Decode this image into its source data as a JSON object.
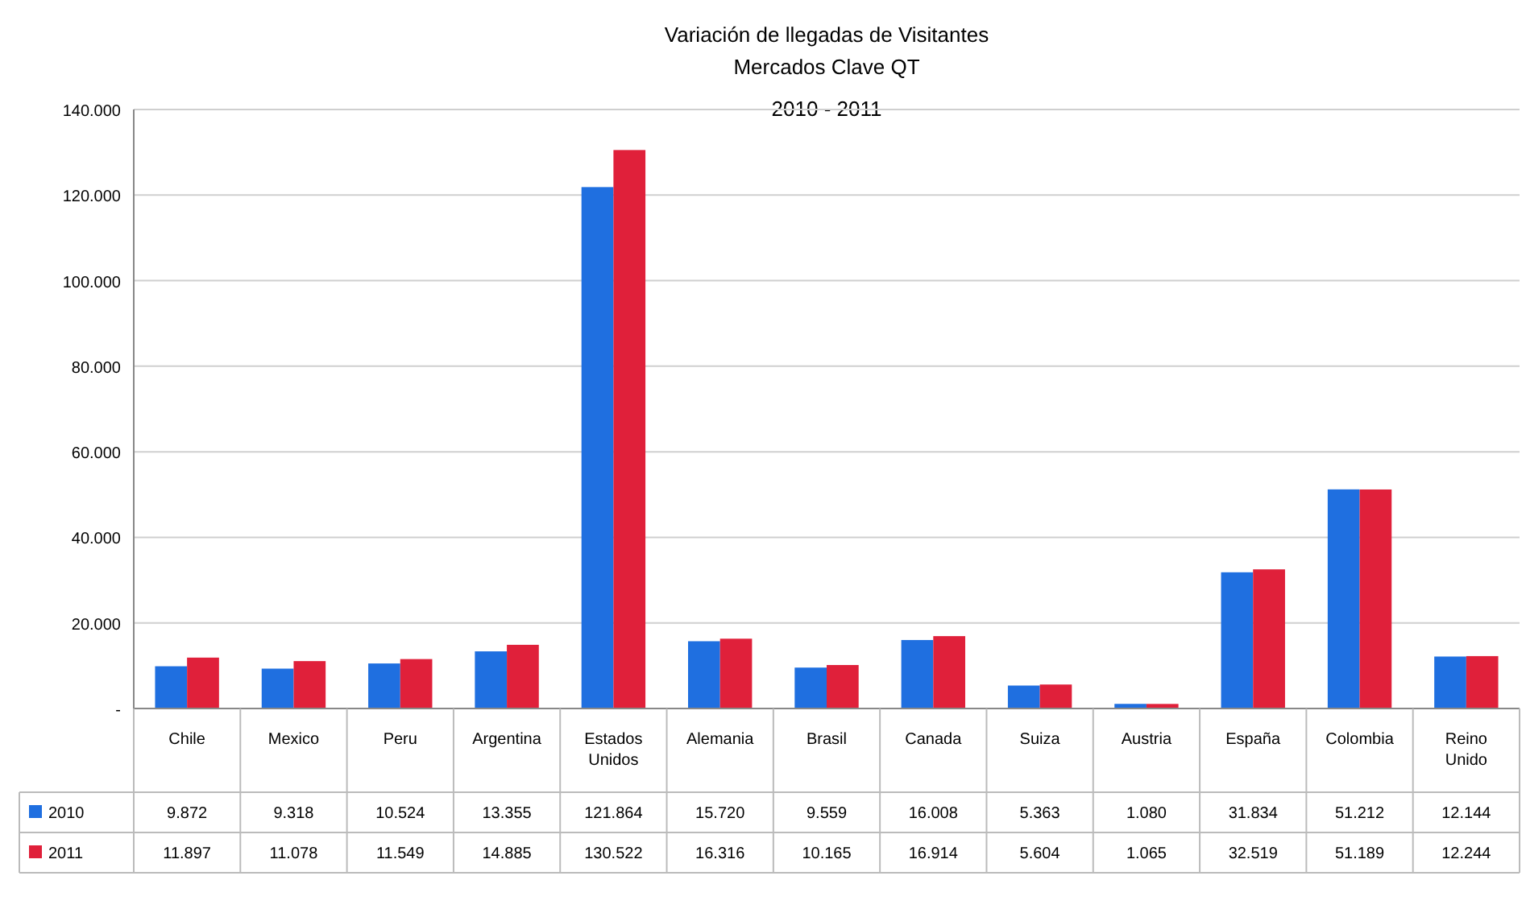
{
  "chart_data": {
    "type": "bar",
    "title": "Variación de llegadas de Visitantes",
    "subtitle": "Mercados Clave QT",
    "annotations": [
      "2010 - 2011"
    ],
    "categories": [
      "Chile",
      "Mexico",
      "Peru",
      "Argentina",
      "Estados Unidos",
      "Alemania",
      "Brasil",
      "Canada",
      "Suiza",
      "Austria",
      "España",
      "Colombia",
      "Reino Unido"
    ],
    "series": [
      {
        "name": "2010",
        "color": "#1f6fe0",
        "values": [
          9872,
          9318,
          10524,
          13355,
          121864,
          15720,
          9559,
          16008,
          5363,
          1080,
          31834,
          51212,
          12144
        ],
        "value_labels": [
          "9.872",
          "9.318",
          "10.524",
          "13.355",
          "121.864",
          "15.720",
          "9.559",
          "16.008",
          "5.363",
          "1.080",
          "31.834",
          "51.212",
          "12.144"
        ]
      },
      {
        "name": "2011",
        "color": "#e0203a",
        "values": [
          11897,
          11078,
          11549,
          14885,
          130522,
          16316,
          10165,
          16914,
          5604,
          1065,
          32519,
          51189,
          12244
        ],
        "value_labels": [
          "11.897",
          "11.078",
          "11.549",
          "14.885",
          "130.522",
          "16.316",
          "10.165",
          "16.914",
          "5.604",
          "1.065",
          "32.519",
          "51.189",
          "12.244"
        ]
      }
    ],
    "ylim": [
      0,
      140000
    ],
    "yticks": [
      {
        "value": 0,
        "label": "-"
      },
      {
        "value": 20000,
        "label": "20.000"
      },
      {
        "value": 40000,
        "label": "40.000"
      },
      {
        "value": 60000,
        "label": "60.000"
      },
      {
        "value": 80000,
        "label": "80.000"
      },
      {
        "value": 100000,
        "label": "100.000"
      },
      {
        "value": 120000,
        "label": "120.000"
      },
      {
        "value": 140000,
        "label": "140.000"
      }
    ],
    "grid": "y",
    "legend": "bottom left"
  }
}
